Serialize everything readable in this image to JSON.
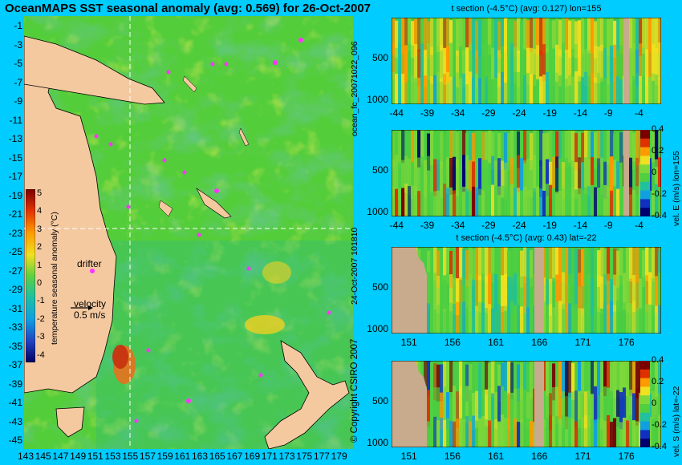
{
  "title": "OceanMAPS SST seasonal anomaly (avg: 0.569) for 26-Oct-2007",
  "map": {
    "lon_ticks": [
      "143",
      "145",
      "147",
      "149",
      "151",
      "153",
      "155",
      "157",
      "159",
      "161",
      "163",
      "165",
      "167",
      "169",
      "171",
      "173",
      "175",
      "177",
      "179"
    ],
    "lat_ticks": [
      "-1",
      "-3",
      "-5",
      "-7",
      "-9",
      "-11",
      "-13",
      "-15",
      "-17",
      "-19",
      "-21",
      "-23",
      "-25",
      "-27",
      "-29",
      "-31",
      "-33",
      "-35",
      "-37",
      "-39",
      "-41",
      "-43",
      "-45"
    ],
    "colorbar_label": "temperature seasonal anomaly (°C)",
    "colorbar_ticks": [
      "5",
      "4",
      "3",
      "2",
      "1",
      "0",
      "-1",
      "-2",
      "-3",
      "-4"
    ],
    "drifter_label": "drifter",
    "velocity_label": "velocity",
    "velocity_value": "0.5 m/s"
  },
  "side_labels": {
    "left_top": "ocean_fc_20071022_096",
    "left_bottom": "24-Oct-2007 101810",
    "copyright": "© Copyright CSIRO 2007"
  },
  "colors": {
    "background": "#00ccff",
    "land": "#f5c9a0",
    "section_land": "#c8aa8c",
    "drifter": "#ff33ff",
    "crosshair": "#ffffff"
  },
  "chart_data": [
    {
      "type": "heatmap",
      "title": "t section (-4.5°C) (avg: 0.127) lon=155",
      "x_ticks": [
        "-44",
        "-39",
        "-34",
        "-29",
        "-24",
        "-19",
        "-14",
        "-9",
        "-4"
      ],
      "y_ticks": [
        "500",
        "1000"
      ],
      "xlim": [
        -45,
        -1
      ],
      "ylim": [
        1050,
        0
      ],
      "colorbar": null
    },
    {
      "type": "heatmap",
      "title": "",
      "x_ticks": [
        "-44",
        "-39",
        "-34",
        "-29",
        "-24",
        "-19",
        "-14",
        "-9",
        "-4"
      ],
      "y_ticks": [
        "500",
        "1000"
      ],
      "xlim": [
        -45,
        -1
      ],
      "ylim": [
        1050,
        0
      ],
      "colorbar": {
        "label": "vel. E (m/s) lon=155",
        "ticks": [
          "0.4",
          "0.2",
          "0",
          "-0.2",
          "-0.4"
        ]
      }
    },
    {
      "type": "heatmap",
      "title": "t section (-4.5°C) (avg: 0.43) lat=-22",
      "x_ticks": [
        "151",
        "156",
        "161",
        "166",
        "171",
        "176"
      ],
      "y_ticks": [
        "500",
        "1000"
      ],
      "xlim": [
        149,
        180
      ],
      "ylim": [
        1050,
        0
      ],
      "colorbar": null
    },
    {
      "type": "heatmap",
      "title": "",
      "x_ticks": [
        "151",
        "156",
        "161",
        "166",
        "171",
        "176"
      ],
      "y_ticks": [
        "500",
        "1000"
      ],
      "xlim": [
        149,
        180
      ],
      "ylim": [
        1050,
        0
      ],
      "colorbar": {
        "label": "vel. S (m/s) lat=-22",
        "ticks": [
          "0.4",
          "0.2",
          "0",
          "-0.2",
          "-0.4"
        ]
      }
    }
  ]
}
